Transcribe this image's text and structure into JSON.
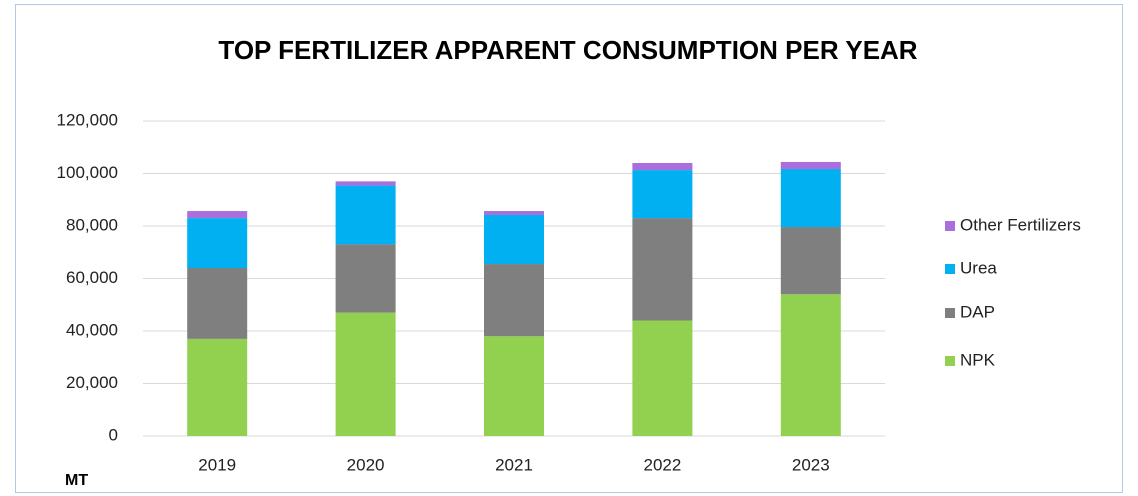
{
  "chart_data": {
    "type": "stacked_bar",
    "title": "TOP FERTILIZER APPARENT CONSUMPTION PER YEAR",
    "y_label": "MT",
    "categories": [
      "2019",
      "2020",
      "2021",
      "2022",
      "2023"
    ],
    "series": [
      {
        "name": "NPK",
        "color": "#92d050",
        "values": [
          37000,
          47000,
          38000,
          44000,
          54000
        ]
      },
      {
        "name": "DAP",
        "color": "#7f7f7f",
        "values": [
          27000,
          26000,
          27500,
          39000,
          25600
        ]
      },
      {
        "name": "Urea",
        "color": "#00b0f0",
        "values": [
          19000,
          22400,
          18700,
          18300,
          22100
        ]
      },
      {
        "name": "Other Fertilizers",
        "color": "#a96fdc",
        "values": [
          2700,
          1600,
          1500,
          2700,
          2700
        ]
      }
    ],
    "ylim": [
      0,
      120000
    ],
    "yticks": [
      0,
      {
        "value": 20000,
        "label": "20,000"
      },
      {
        "value": 40000,
        "label": "40,000"
      },
      {
        "value": 60000,
        "label": "60,000"
      },
      {
        "value": 80000,
        "label": "80,000"
      },
      {
        "value": 100000,
        "label": "100,000"
      },
      {
        "value": 120000,
        "label": "120,000"
      }
    ],
    "grid": true,
    "legend": "right"
  }
}
